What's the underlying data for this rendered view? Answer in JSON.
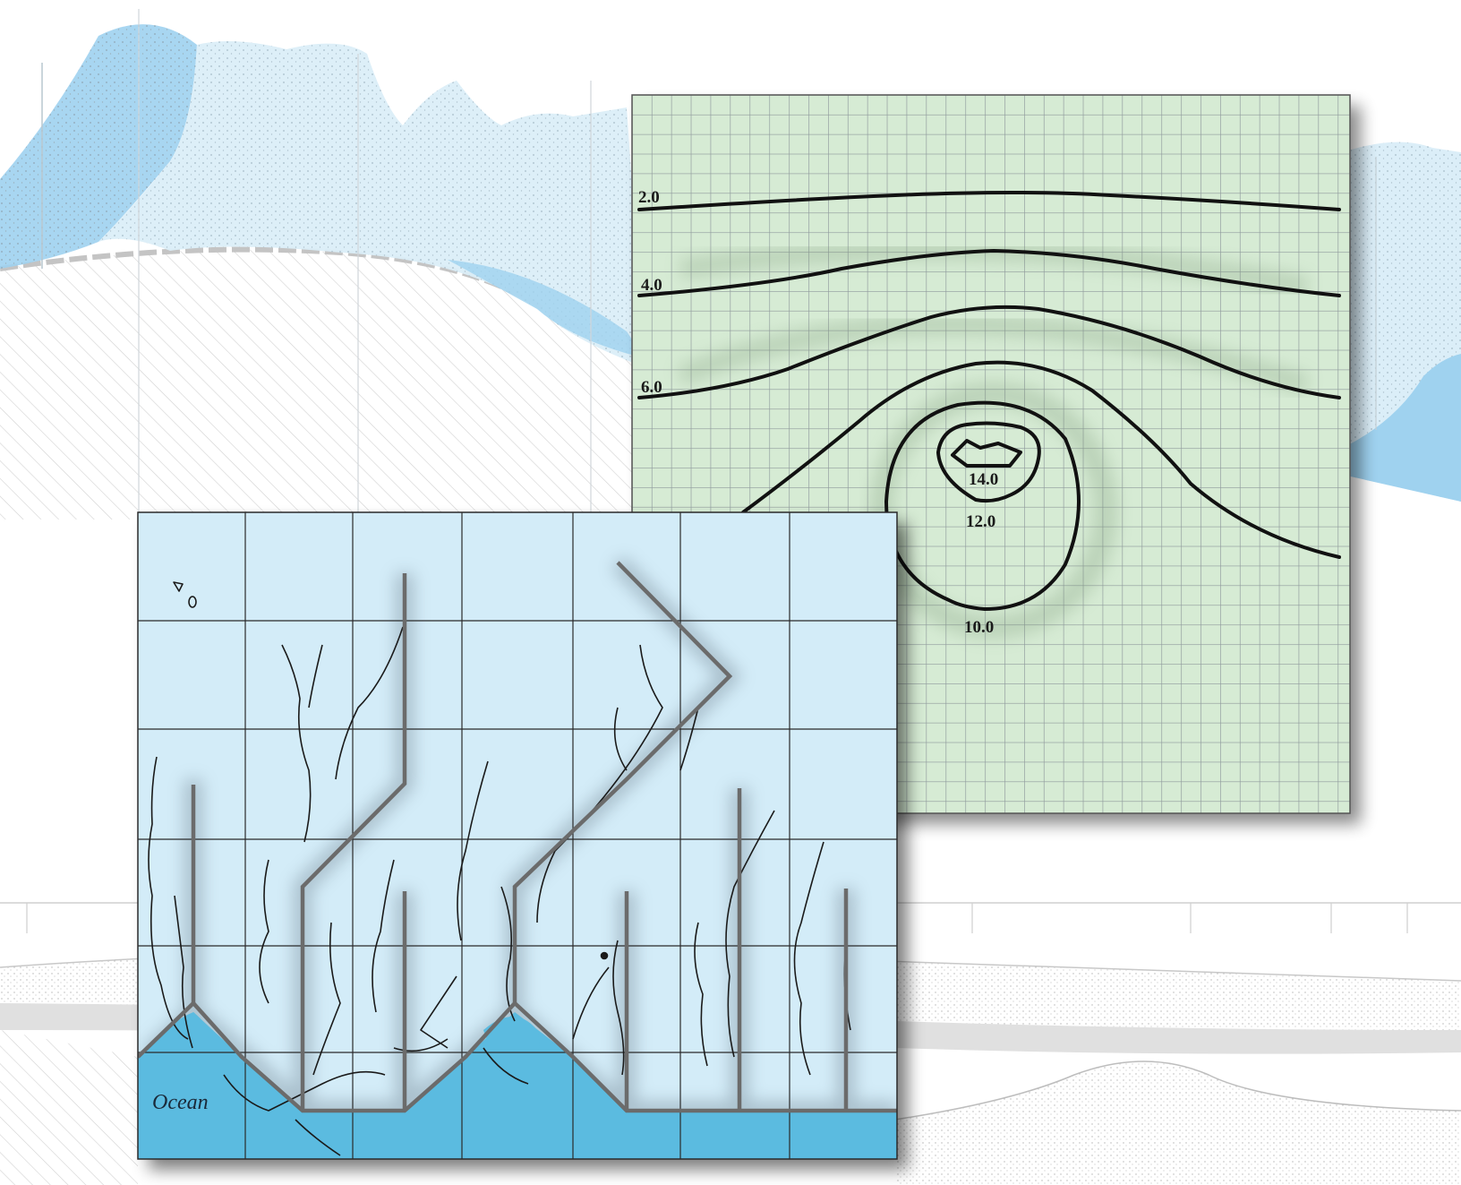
{
  "contour_map": {
    "labels": [
      {
        "key": "c2",
        "text": "2.0"
      },
      {
        "key": "c4",
        "text": "4.0"
      },
      {
        "key": "c6",
        "text": "6.0"
      },
      {
        "key": "c10",
        "text": "10.0"
      },
      {
        "key": "c12",
        "text": "12.0"
      },
      {
        "key": "c14",
        "text": "14.0"
      }
    ],
    "background_color": "#d6ebd4",
    "grid_color": "#8f9a9c",
    "line_color": "#111111"
  },
  "model_grid_map": {
    "ocean_label": "Ocean",
    "background_color": "#d3ecf8",
    "ocean_color": "#5bbbe0",
    "boundary_color": "#6b6b6b",
    "stream_color": "#1a1a1a"
  },
  "cross_section": {
    "aquifer_color": "#9fd2ef",
    "bedrock_color": "#f2f2f2"
  }
}
